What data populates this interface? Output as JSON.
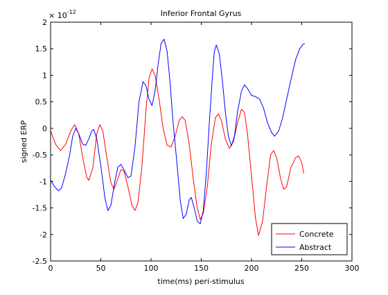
{
  "chart_data": {
    "type": "line",
    "title": "Inferior Frontal Gyrus",
    "xlabel": "time(ms) peri-stimulus",
    "ylabel": "signed ERP",
    "y_exponent_label": "× 10",
    "y_exponent_power": "-12",
    "xlim": [
      0,
      300
    ],
    "ylim": [
      -2.5,
      2
    ],
    "x_ticks": [
      0,
      50,
      100,
      150,
      200,
      250,
      300
    ],
    "x_tick_labels": [
      "0",
      "50",
      "100",
      "150",
      "200",
      "250",
      "300"
    ],
    "y_ticks": [
      2,
      1.5,
      1,
      0.5,
      0,
      -0.5,
      -1,
      -1.5,
      -2,
      -2.5
    ],
    "y_tick_labels": [
      "2",
      "1.5",
      "1",
      "0.5",
      "0",
      "-0.5",
      "-1",
      "-1.5",
      "-2",
      "-2.5"
    ],
    "grid": false,
    "legend_position": "bottom-right",
    "series": [
      {
        "name": "Concrete",
        "color": "#ff0000",
        "points": [
          [
            0,
            -0.05
          ],
          [
            5,
            -0.3
          ],
          [
            10,
            -0.42
          ],
          [
            15,
            -0.3
          ],
          [
            20,
            -0.05
          ],
          [
            24,
            0.07
          ],
          [
            28,
            -0.1
          ],
          [
            32,
            -0.55
          ],
          [
            36,
            -0.92
          ],
          [
            38,
            -0.98
          ],
          [
            42,
            -0.75
          ],
          [
            46,
            -0.1
          ],
          [
            49,
            0.07
          ],
          [
            52,
            -0.05
          ],
          [
            56,
            -0.55
          ],
          [
            60,
            -1.02
          ],
          [
            63,
            -1.15
          ],
          [
            66,
            -1.0
          ],
          [
            70,
            -0.78
          ],
          [
            73,
            -0.8
          ],
          [
            77,
            -1.1
          ],
          [
            81,
            -1.45
          ],
          [
            84,
            -1.55
          ],
          [
            87,
            -1.4
          ],
          [
            91,
            -0.7
          ],
          [
            95,
            0.35
          ],
          [
            98,
            0.95
          ],
          [
            101,
            1.12
          ],
          [
            104,
            1.0
          ],
          [
            108,
            0.55
          ],
          [
            112,
            0.0
          ],
          [
            116,
            -0.32
          ],
          [
            120,
            -0.35
          ],
          [
            124,
            -0.15
          ],
          [
            128,
            0.15
          ],
          [
            131,
            0.22
          ],
          [
            134,
            0.15
          ],
          [
            138,
            -0.3
          ],
          [
            142,
            -0.95
          ],
          [
            146,
            -1.5
          ],
          [
            149,
            -1.72
          ],
          [
            152,
            -1.6
          ],
          [
            156,
            -1.1
          ],
          [
            160,
            -0.3
          ],
          [
            164,
            0.2
          ],
          [
            167,
            0.27
          ],
          [
            170,
            0.15
          ],
          [
            174,
            -0.2
          ],
          [
            178,
            -0.38
          ],
          [
            182,
            -0.25
          ],
          [
            186,
            0.1
          ],
          [
            190,
            0.36
          ],
          [
            193,
            0.3
          ],
          [
            196,
            -0.1
          ],
          [
            200,
            -0.9
          ],
          [
            204,
            -1.7
          ],
          [
            207,
            -2.02
          ],
          [
            211,
            -1.75
          ],
          [
            215,
            -1.1
          ],
          [
            219,
            -0.5
          ],
          [
            222,
            -0.42
          ],
          [
            225,
            -0.55
          ],
          [
            229,
            -0.95
          ],
          [
            232,
            -1.15
          ],
          [
            235,
            -1.1
          ],
          [
            239,
            -0.75
          ],
          [
            244,
            -0.55
          ],
          [
            247,
            -0.52
          ],
          [
            250,
            -0.65
          ],
          [
            252,
            -0.85
          ]
        ]
      },
      {
        "name": "Abstract",
        "color": "#0000ff",
        "points": [
          [
            0,
            -0.98
          ],
          [
            4,
            -1.1
          ],
          [
            8,
            -1.18
          ],
          [
            11,
            -1.12
          ],
          [
            15,
            -0.85
          ],
          [
            19,
            -0.5
          ],
          [
            22,
            -0.15
          ],
          [
            25,
            0.0
          ],
          [
            28,
            -0.1
          ],
          [
            32,
            -0.3
          ],
          [
            35,
            -0.32
          ],
          [
            38,
            -0.2
          ],
          [
            41,
            -0.05
          ],
          [
            43,
            -0.02
          ],
          [
            46,
            -0.2
          ],
          [
            50,
            -0.7
          ],
          [
            54,
            -1.3
          ],
          [
            57,
            -1.55
          ],
          [
            60,
            -1.45
          ],
          [
            64,
            -1.0
          ],
          [
            67,
            -0.73
          ],
          [
            70,
            -0.68
          ],
          [
            73,
            -0.78
          ],
          [
            77,
            -0.93
          ],
          [
            80,
            -0.9
          ],
          [
            84,
            -0.35
          ],
          [
            88,
            0.5
          ],
          [
            92,
            0.88
          ],
          [
            95,
            0.8
          ],
          [
            98,
            0.55
          ],
          [
            101,
            0.43
          ],
          [
            104,
            0.7
          ],
          [
            107,
            1.2
          ],
          [
            110,
            1.6
          ],
          [
            113,
            1.68
          ],
          [
            116,
            1.45
          ],
          [
            119,
            0.85
          ],
          [
            122,
            0.1
          ],
          [
            126,
            -0.7
          ],
          [
            129,
            -1.35
          ],
          [
            132,
            -1.7
          ],
          [
            135,
            -1.62
          ],
          [
            138,
            -1.35
          ],
          [
            140,
            -1.3
          ],
          [
            143,
            -1.5
          ],
          [
            146,
            -1.75
          ],
          [
            149,
            -1.8
          ],
          [
            152,
            -1.55
          ],
          [
            155,
            -0.85
          ],
          [
            158,
            0.1
          ],
          [
            161,
            0.95
          ],
          [
            163,
            1.45
          ],
          [
            165,
            1.57
          ],
          [
            168,
            1.4
          ],
          [
            171,
            0.9
          ],
          [
            174,
            0.3
          ],
          [
            177,
            -0.15
          ],
          [
            180,
            -0.33
          ],
          [
            183,
            -0.15
          ],
          [
            186,
            0.3
          ],
          [
            190,
            0.7
          ],
          [
            193,
            0.82
          ],
          [
            196,
            0.75
          ],
          [
            200,
            0.62
          ],
          [
            204,
            0.6
          ],
          [
            208,
            0.55
          ],
          [
            212,
            0.38
          ],
          [
            216,
            0.1
          ],
          [
            220,
            -0.08
          ],
          [
            223,
            -0.15
          ],
          [
            227,
            -0.05
          ],
          [
            231,
            0.2
          ],
          [
            235,
            0.55
          ],
          [
            240,
            0.98
          ],
          [
            244,
            1.3
          ],
          [
            248,
            1.5
          ],
          [
            251,
            1.58
          ],
          [
            253,
            1.6
          ]
        ]
      }
    ]
  }
}
